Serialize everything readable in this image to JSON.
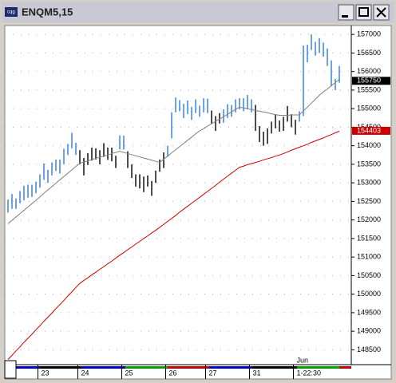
{
  "chart_data": {
    "type": "ohlc",
    "title": "ENQM5,15",
    "high": [
      152550,
      152700,
      152580,
      152780,
      152920,
      152950,
      152950,
      153030,
      153230,
      153520,
      153350,
      153550,
      153630,
      153630,
      153920,
      154050,
      154350,
      154080,
      153880,
      153670,
      153800,
      153950,
      153930,
      153880,
      154070,
      153950,
      153950,
      153730,
      154280,
      154270,
      153850,
      153500,
      153230,
      153230,
      153170,
      153200,
      153050,
      153330,
      153630,
      153820,
      154000,
      154900,
      155300,
      155230,
      155130,
      155220,
      155050,
      155250,
      155080,
      155280,
      155270,
      154950,
      154800,
      154880,
      154980,
      155120,
      155100,
      155250,
      155280,
      155280,
      155370,
      155250,
      155100,
      154530,
      154380,
      154470,
      154650,
      154850,
      154680,
      154780,
      155070,
      154850,
      154700,
      154930,
      156700,
      156720,
      157000,
      156800,
      156900,
      156780,
      156620,
      156300,
      155800,
      156150
    ],
    "low": [
      152200,
      152300,
      152300,
      152450,
      152530,
      152600,
      152620,
      152720,
      152870,
      153080,
      153000,
      153200,
      153320,
      153250,
      153500,
      153750,
      153930,
      153750,
      153500,
      153200,
      153480,
      153600,
      153630,
      153500,
      153700,
      153620,
      153580,
      153400,
      153900,
      153900,
      153400,
      153130,
      152900,
      152850,
      152750,
      152900,
      152650,
      153000,
      153300,
      153400,
      153700,
      154200,
      154900,
      154930,
      154750,
      154850,
      154700,
      154880,
      154780,
      154900,
      154880,
      154600,
      154400,
      154600,
      154620,
      154750,
      154780,
      154900,
      154980,
      154930,
      154980,
      154900,
      154400,
      154100,
      154000,
      154050,
      154330,
      154470,
      154380,
      154400,
      154650,
      154500,
      154300,
      154650,
      154800,
      156250,
      156580,
      156430,
      156500,
      156400,
      156150,
      155600,
      155500,
      155700
    ],
    "bar_colors": [
      "#2b7bd8",
      "#2b7bd8",
      "#2b7bd8",
      "#2b7bd8",
      "#2b7bd8",
      "#2b7bd8",
      "#2b7bd8",
      "#2b7bd8",
      "#2b7bd8",
      "#2b7bd8",
      "#2b7bd8",
      "#2b7bd8",
      "#2b7bd8",
      "#2b7bd8",
      "#2b7bd8",
      "#2b7bd8",
      "#2b7bd8",
      "#2b7bd8",
      "#000000",
      "#000000",
      "#000000",
      "#000000",
      "#000000",
      "#000000",
      "#000000",
      "#000000",
      "#000000",
      "#000000",
      "#2b7bd8",
      "#2b7bd8",
      "#000000",
      "#000000",
      "#000000",
      "#000000",
      "#000000",
      "#000000",
      "#000000",
      "#000000",
      "#000000",
      "#000000",
      "#2b7bd8",
      "#2b7bd8",
      "#2b7bd8",
      "#2b7bd8",
      "#2b7bd8",
      "#2b7bd8",
      "#2b7bd8",
      "#2b7bd8",
      "#2b7bd8",
      "#2b7bd8",
      "#2b7bd8",
      "#000000",
      "#000000",
      "#000000",
      "#2b7bd8",
      "#2b7bd8",
      "#2b7bd8",
      "#2b7bd8",
      "#2b7bd8",
      "#2b7bd8",
      "#2b7bd8",
      "#2b7bd8",
      "#000000",
      "#000000",
      "#000000",
      "#000000",
      "#000000",
      "#000000",
      "#000000",
      "#000000",
      "#000000",
      "#000000",
      "#000000",
      "#2b7bd8",
      "#2b7bd8",
      "#2b7bd8",
      "#2b7bd8",
      "#2b7bd8",
      "#2b7bd8",
      "#2b7bd8",
      "#2b7bd8",
      "#2b7bd8",
      "#2b7bd8",
      "#2b7bd8"
    ],
    "series": [
      {
        "color": "#808080",
        "values": [
          151900,
          151990,
          152080,
          152170,
          152260,
          152350,
          152440,
          152530,
          152620,
          152720,
          152810,
          152900,
          152990,
          153080,
          153170,
          153260,
          153350,
          153440,
          153530,
          153560,
          153590,
          153630,
          153660,
          153690,
          153720,
          153750,
          153790,
          153820,
          153850,
          153820,
          153790,
          153760,
          153730,
          153700,
          153670,
          153640,
          153610,
          153580,
          153550,
          153640,
          153720,
          153810,
          153890,
          153980,
          154060,
          154150,
          154230,
          154320,
          154400,
          154460,
          154530,
          154590,
          154660,
          154720,
          154780,
          154850,
          154910,
          154980,
          155040,
          155020,
          155000,
          154970,
          154950,
          154930,
          154910,
          154890,
          154860,
          154840,
          154820,
          154820,
          154820,
          154830,
          154830,
          154830,
          154940,
          155040,
          155150,
          155250,
          155360,
          155450,
          155530,
          155620,
          155700,
          155790
        ]
      },
      {
        "color": "#cc0000",
        "values": [
          148240,
          148350,
          148470,
          148580,
          148700,
          148810,
          148920,
          149040,
          149150,
          149270,
          149380,
          149490,
          149610,
          149720,
          149830,
          149950,
          150060,
          150180,
          150290,
          150370,
          150440,
          150520,
          150590,
          150670,
          150740,
          150820,
          150890,
          150970,
          151050,
          151120,
          151200,
          151270,
          151350,
          151420,
          151500,
          151570,
          151650,
          151720,
          151800,
          151880,
          151960,
          152040,
          152120,
          152210,
          152290,
          152370,
          152450,
          152530,
          152610,
          152690,
          152770,
          152850,
          152930,
          153020,
          153100,
          153180,
          153260,
          153340,
          153420,
          153450,
          153490,
          153520,
          153550,
          153580,
          153620,
          153650,
          153680,
          153720,
          153750,
          153790,
          153830,
          153880,
          153920,
          153960,
          154000,
          154040,
          154090,
          154130,
          154170,
          154210,
          154260,
          154300,
          154350,
          154390
        ]
      }
    ],
    "markers": [
      {
        "value": 155750,
        "color": "#000000"
      },
      {
        "value": 154403,
        "color": "#cc0000"
      }
    ],
    "xlim": [
      -0.8,
      86
    ],
    "xticks": [
      {
        "value": 8,
        "label": "23"
      },
      {
        "value": 18,
        "label": "24"
      },
      {
        "value": 29,
        "label": "25"
      },
      {
        "value": 40,
        "label": "26"
      },
      {
        "value": 50,
        "label": "27"
      },
      {
        "value": 61,
        "label": "31"
      },
      {
        "value": 72,
        "label": "1-22:30"
      }
    ],
    "month_label": "Jun",
    "ylim": [
      148100,
      157240
    ],
    "yticks": [
      148500,
      149000,
      149500,
      150000,
      150500,
      151000,
      151500,
      152000,
      152500,
      153000,
      153500,
      154000,
      154500,
      155000,
      155500,
      156000,
      156500,
      157000
    ],
    "grid": true
  }
}
